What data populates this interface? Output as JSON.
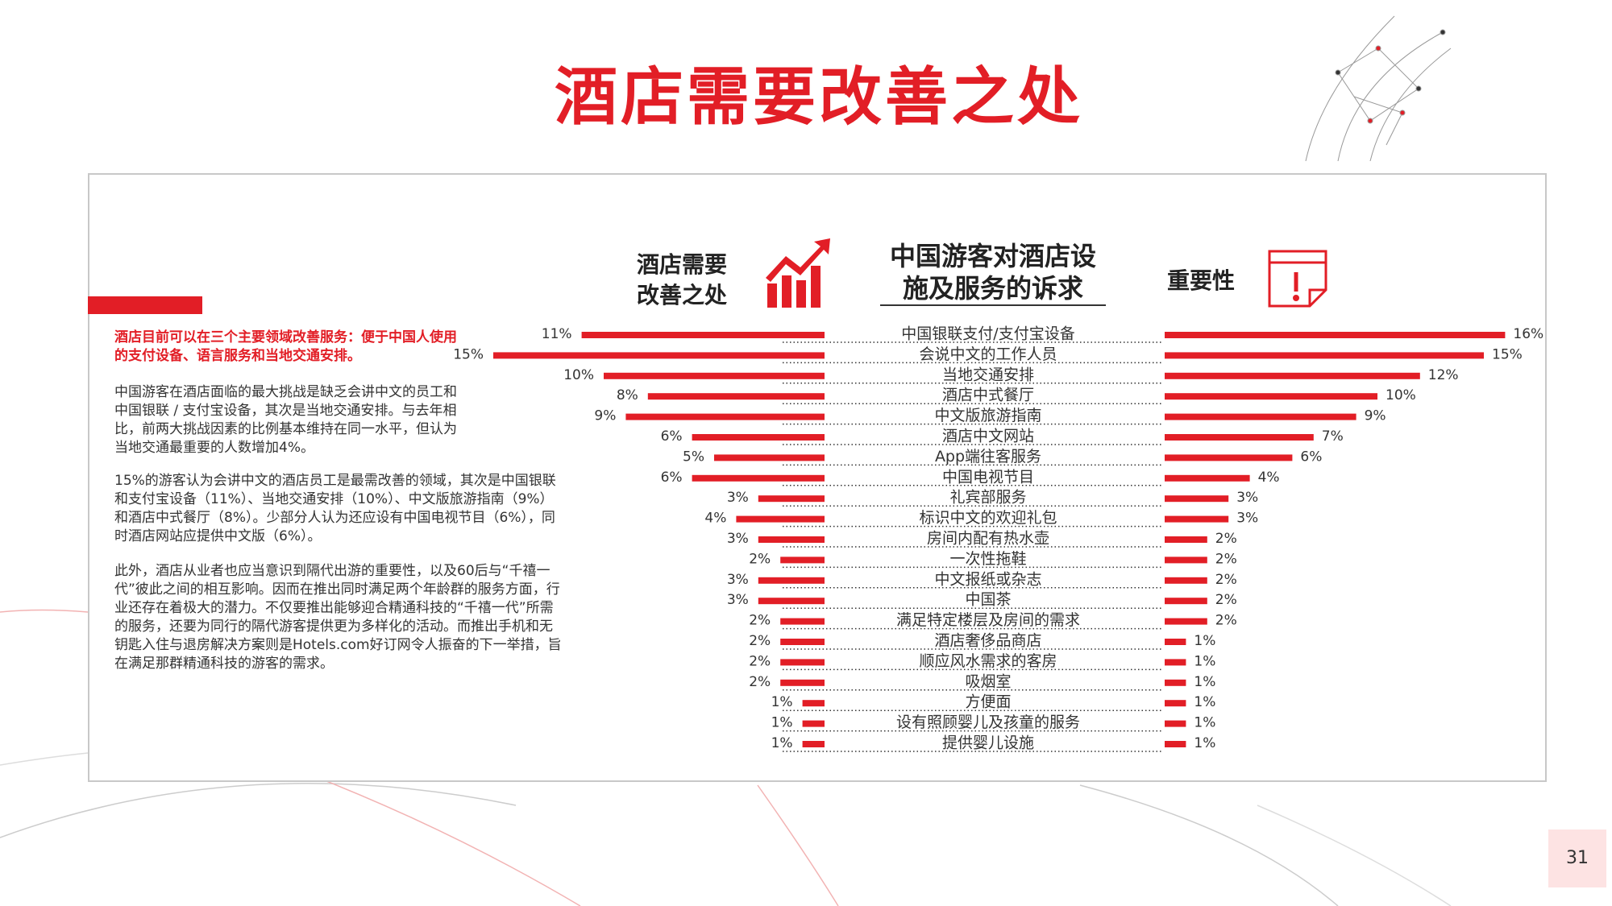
{
  "header": {
    "title": "酒店需要改善之处"
  },
  "page_number": "31",
  "text": {
    "highlight": "酒店目前可以在三个主要领域改善服务：便于中国人使用的支付设备、语言服务和当地交通安排。",
    "paragraphs": [
      "中国游客在酒店面临的最大挑战是缺乏会讲中文的员工和中国银联 / 支付宝设备，其次是当地交通安排。与去年相比，前两大挑战因素的比例基本维持在同一水平，但认为当地交通最重要的人数增加4%。",
      "15%的游客认为会讲中文的酒店员工是最需改善的领域，其次是中国银联和支付宝设备（11%）、当地交通安排（10%）、中文版旅游指南（9%）和酒店中式餐厅（8%）。少部分人认为还应设有中国电视节目（6%），同时酒店网站应提供中文版（6%）。",
      "此外，酒店从业者也应当意识到隔代出游的重要性，以及60后与“千禧一代”彼此之间的相互影响。因而在推出同时满足两个年龄群的服务方面，行业还存在着极大的潜力。不仅要推出能够迎合精通科技的“千禧一代”所需的服务，还要为同行的隔代游客提供更为多样化的活动。而推出手机和无钥匙入住与退房解决方案则是Hotels.com好订网令人振奋的下一举措，旨在满足那群精通科技的游客的需求。"
    ]
  },
  "chart_data": {
    "type": "bar",
    "title": "中国游客对酒店设施及服务的诉求",
    "categories": [
      "中国银联支付/支付宝设备",
      "会说中文的工作人员",
      "当地交通安排",
      "酒店中式餐厅",
      "中文版旅游指南",
      "酒店中文网站",
      "App端往客服务",
      "中国电视节目",
      "礼宾部服务",
      "标识中文的欢迎礼包",
      "房间内配有热水壶",
      "一次性拖鞋",
      "中文报纸或杂志",
      "中国茶",
      "满足特定楼层及房间的需求",
      "酒店奢侈品商店",
      "顺应风水需求的客房",
      "吸烟室",
      "方便面",
      "设有照顾婴儿及孩童的服务",
      "提供婴儿设施"
    ],
    "series": [
      {
        "name": "酒店需要改善之处",
        "color": "#e21e26",
        "values": [
          11,
          15,
          10,
          8,
          9,
          6,
          5,
          6,
          3,
          4,
          3,
          2,
          3,
          3,
          2,
          2,
          2,
          2,
          1,
          1,
          1
        ],
        "value_labels": [
          "11%",
          "15%",
          "10%",
          "8%",
          "9%",
          "6%",
          "5%",
          "6%",
          "3%",
          "4%",
          "3%",
          "2%",
          "3%",
          "3%",
          "2%",
          "2%",
          "2%",
          "2%",
          "1%",
          "1%",
          "1%"
        ]
      },
      {
        "name": "重要性",
        "color": "#e21e26",
        "values": [
          16,
          15,
          12,
          10,
          9,
          7,
          6,
          4,
          3,
          3,
          2,
          2,
          2,
          2,
          2,
          1,
          1,
          1,
          1,
          1,
          1
        ],
        "value_labels": [
          "16%",
          "15%",
          "12%",
          "10%",
          "9%",
          "7%",
          "6%",
          "4%",
          "3%",
          "3%",
          "2%",
          "2%",
          "2%",
          "2%",
          "2%",
          "1%",
          "1%",
          "1%",
          "1%",
          "1%",
          "1%"
        ]
      }
    ]
  }
}
